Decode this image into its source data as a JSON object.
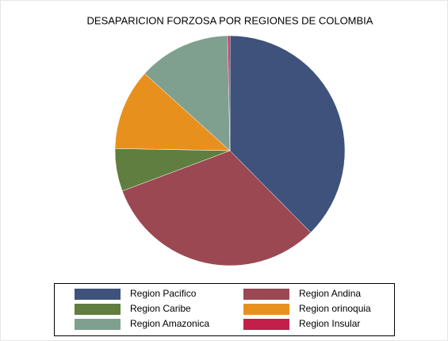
{
  "chart_data": {
    "type": "pie",
    "title": "DESAPARICION FORZOSA POR REGIONES DE COLOMBIA",
    "categories": [
      "Region Pacifico",
      "Region Andina",
      "Region Caribe",
      "Region orinoquia",
      "Region Amazonica",
      "Region Insular"
    ],
    "values": [
      37.6,
      31.7,
      6,
      11.4,
      13,
      0.3
    ],
    "colors": [
      "#3e527b",
      "#9b4852",
      "#5f7e3f",
      "#e8901e",
      "#80a08f",
      "#c41e4b"
    ],
    "legend": "bottom"
  }
}
